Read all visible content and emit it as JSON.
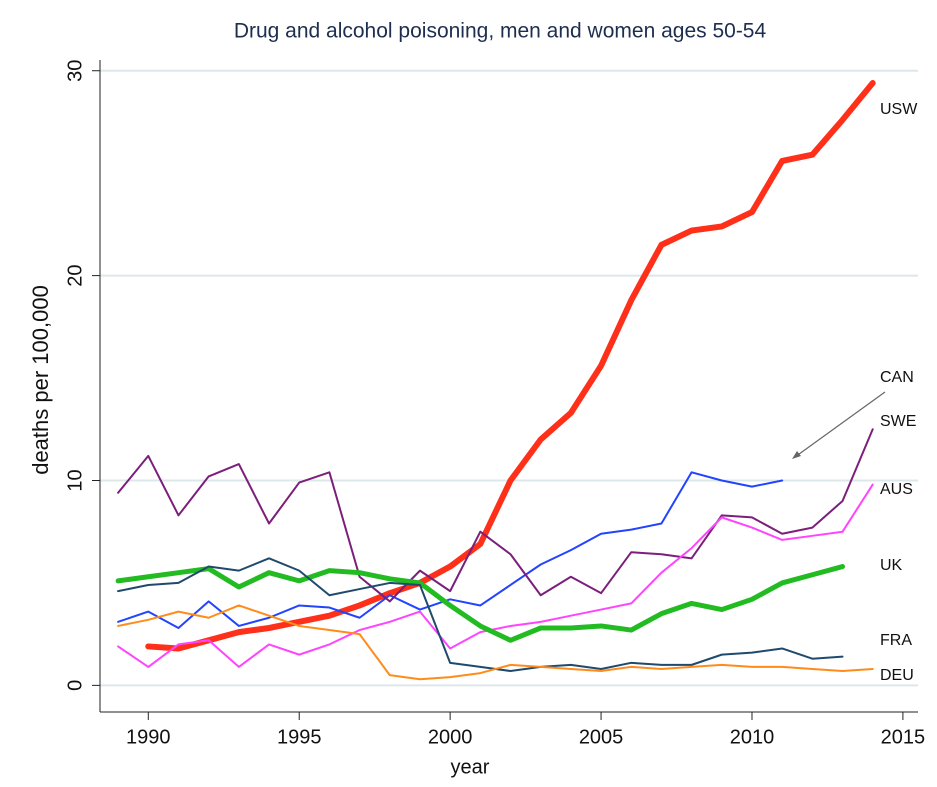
{
  "chart_data": {
    "type": "line",
    "title": "Drug and alcohol poisoning, men and women ages 50-54",
    "x_label": "year",
    "y_label": "deaths per 100,000",
    "x": [
      1989,
      1990,
      1991,
      1992,
      1993,
      1994,
      1995,
      1996,
      1997,
      1998,
      1999,
      2000,
      2001,
      2002,
      2003,
      2004,
      2005,
      2006,
      2007,
      2008,
      2009,
      2010,
      2011,
      2012,
      2013,
      2014
    ],
    "xlim": [
      1988.4,
      2015.5
    ],
    "xticks": [
      1990,
      1995,
      2000,
      2005,
      2010,
      2015
    ],
    "ylim": [
      -1.3,
      31.5
    ],
    "yticks": [
      0,
      10,
      20,
      30
    ],
    "grid": true,
    "series": [
      {
        "name": "USW",
        "color": "#ff3019",
        "values": [
          null,
          1.9,
          1.8,
          2.2,
          2.6,
          2.8,
          3.1,
          3.4,
          3.9,
          4.5,
          5.0,
          5.8,
          6.9,
          10.0,
          12.0,
          13.3,
          15.6,
          18.8,
          21.5,
          22.2,
          22.4,
          23.1,
          25.6,
          25.9,
          27.6,
          29.4
        ]
      },
      {
        "name": "CAN",
        "color": "#2244ff",
        "values": [
          3.1,
          3.6,
          2.8,
          4.1,
          2.9,
          3.3,
          3.9,
          3.8,
          3.3,
          4.4,
          3.7,
          4.2,
          3.9,
          4.9,
          5.9,
          6.6,
          7.4,
          7.6,
          7.9,
          10.4,
          10.0,
          9.7,
          10.0,
          null,
          null,
          null
        ]
      },
      {
        "name": "SWE",
        "color": "#7b1f7b",
        "values": [
          9.4,
          11.2,
          8.3,
          10.2,
          10.8,
          7.9,
          9.9,
          10.4,
          5.3,
          4.1,
          5.6,
          4.6,
          7.5,
          6.4,
          4.4,
          5.3,
          4.5,
          6.5,
          6.4,
          6.2,
          8.3,
          8.2,
          7.4,
          7.7,
          9.0,
          12.5
        ]
      },
      {
        "name": "AUS",
        "color": "#ff44ff",
        "values": [
          1.9,
          0.9,
          2.0,
          2.2,
          0.9,
          2.0,
          1.5,
          2.0,
          2.7,
          3.1,
          3.6,
          1.8,
          2.6,
          2.9,
          3.1,
          3.4,
          3.7,
          4.0,
          5.5,
          6.7,
          8.2,
          7.7,
          7.1,
          7.3,
          7.5,
          9.8
        ]
      },
      {
        "name": "UK",
        "color": "#22bb22",
        "values": [
          5.1,
          5.3,
          5.5,
          5.7,
          4.8,
          5.5,
          5.1,
          5.6,
          5.5,
          5.2,
          5.0,
          3.9,
          2.9,
          2.2,
          2.8,
          2.8,
          2.9,
          2.7,
          3.5,
          4.0,
          3.7,
          4.2,
          5.0,
          5.4,
          5.8,
          null
        ]
      },
      {
        "name": "FRA",
        "color": "#1f4a6e",
        "values": [
          4.6,
          4.9,
          5.0,
          5.8,
          5.6,
          6.2,
          5.6,
          4.4,
          4.7,
          5.0,
          4.9,
          1.1,
          0.9,
          0.7,
          0.9,
          1.0,
          0.8,
          1.1,
          1.0,
          1.0,
          1.5,
          1.6,
          1.8,
          1.3,
          1.4,
          null
        ]
      },
      {
        "name": "DEU",
        "color": "#ff8c1a",
        "values": [
          2.9,
          3.2,
          3.6,
          3.3,
          3.9,
          3.4,
          2.9,
          2.7,
          2.5,
          0.5,
          0.3,
          0.4,
          0.6,
          1.0,
          0.9,
          0.8,
          0.7,
          0.9,
          0.8,
          0.9,
          1.0,
          0.9,
          0.9,
          0.8,
          0.7,
          0.8
        ]
      }
    ]
  }
}
